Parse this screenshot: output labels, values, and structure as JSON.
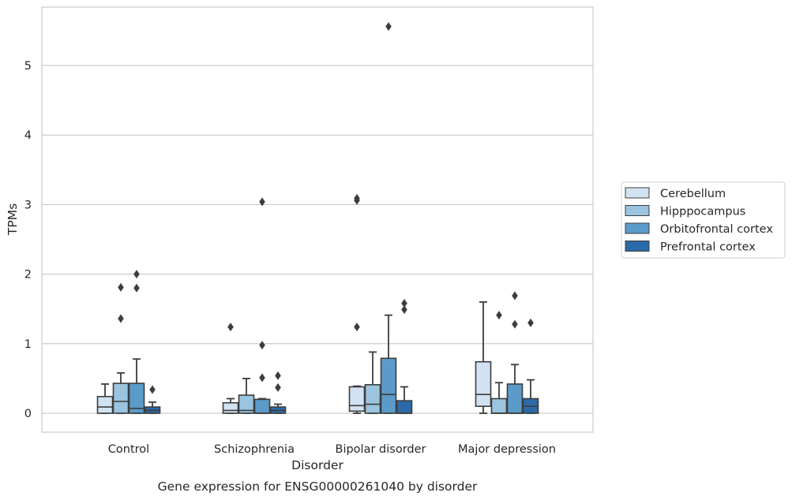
{
  "chart_data": {
    "type": "box",
    "title": "",
    "caption": "Gene expression for ENSG00000261040 by disorder",
    "xlabel": "Disorder",
    "ylabel": "TPMs",
    "ylim": [
      -0.27,
      5.85
    ],
    "yticks": [
      0,
      1,
      2,
      3,
      4,
      5
    ],
    "grid": "horizontal",
    "legend_position": "right",
    "categories": [
      "Control",
      "Schizophrenia",
      "Bipolar disorder",
      "Major depression"
    ],
    "series": [
      {
        "name": "Cerebellum",
        "color": "#d1e2f2",
        "boxes": [
          {
            "q1": 0.0,
            "median": 0.09,
            "q3": 0.24,
            "whisker_low": 0.0,
            "whisker_high": 0.42,
            "outliers": []
          },
          {
            "q1": 0.0,
            "median": 0.04,
            "q3": 0.15,
            "whisker_low": 0.0,
            "whisker_high": 0.21,
            "outliers": [
              1.24
            ]
          },
          {
            "q1": 0.03,
            "median": 0.11,
            "q3": 0.38,
            "whisker_low": 0.0,
            "whisker_high": 0.39,
            "outliers": [
              3.06,
              3.09,
              1.24
            ]
          },
          {
            "q1": 0.1,
            "median": 0.27,
            "q3": 0.74,
            "whisker_low": 0.0,
            "whisker_high": 1.6,
            "outliers": []
          }
        ]
      },
      {
        "name": "Hipppocampus",
        "color": "#9ac4df",
        "boxes": [
          {
            "q1": 0.0,
            "median": 0.17,
            "q3": 0.43,
            "whisker_low": 0.0,
            "whisker_high": 0.58,
            "outliers": [
              1.81,
              1.36
            ]
          },
          {
            "q1": 0.0,
            "median": 0.04,
            "q3": 0.26,
            "whisker_low": 0.0,
            "whisker_high": 0.5,
            "outliers": []
          },
          {
            "q1": 0.0,
            "median": 0.13,
            "q3": 0.41,
            "whisker_low": 0.0,
            "whisker_high": 0.88,
            "outliers": []
          },
          {
            "q1": 0.0,
            "median": 0.0,
            "q3": 0.21,
            "whisker_low": 0.0,
            "whisker_high": 0.44,
            "outliers": [
              1.41
            ]
          }
        ]
      },
      {
        "name": "Orbitofrontal cortex",
        "color": "#5a9bc9",
        "boxes": [
          {
            "q1": 0.0,
            "median": 0.07,
            "q3": 0.43,
            "whisker_low": 0.0,
            "whisker_high": 0.78,
            "outliers": [
              2.0,
              1.8
            ]
          },
          {
            "q1": 0.0,
            "median": 0.0,
            "q3": 0.2,
            "whisker_low": 0.0,
            "whisker_high": 0.21,
            "outliers": [
              3.04,
              0.98,
              0.51
            ]
          },
          {
            "q1": 0.0,
            "median": 0.27,
            "q3": 0.79,
            "whisker_low": 0.0,
            "whisker_high": 1.41,
            "outliers": [
              5.56
            ]
          },
          {
            "q1": 0.0,
            "median": 0.0,
            "q3": 0.42,
            "whisker_low": 0.0,
            "whisker_high": 0.7,
            "outliers": [
              1.69,
              1.28
            ]
          }
        ]
      },
      {
        "name": "Prefrontal cortex",
        "color": "#2b6aa8",
        "boxes": [
          {
            "q1": 0.0,
            "median": 0.04,
            "q3": 0.09,
            "whisker_low": 0.0,
            "whisker_high": 0.16,
            "outliers": [
              0.34
            ]
          },
          {
            "q1": 0.0,
            "median": 0.04,
            "q3": 0.09,
            "whisker_low": 0.0,
            "whisker_high": 0.13,
            "outliers": [
              0.54,
              0.37
            ]
          },
          {
            "q1": 0.0,
            "median": 0.0,
            "q3": 0.18,
            "whisker_low": 0.0,
            "whisker_high": 0.38,
            "outliers": [
              1.58,
              1.49
            ]
          },
          {
            "q1": 0.0,
            "median": 0.1,
            "q3": 0.21,
            "whisker_low": 0.0,
            "whisker_high": 0.48,
            "outliers": [
              1.3
            ]
          }
        ]
      }
    ]
  },
  "colors": {
    "grid": "#cccccc",
    "frame": "#cccccc",
    "box_edge": "#3d3d3d",
    "outlier": "#3d3d3d"
  }
}
